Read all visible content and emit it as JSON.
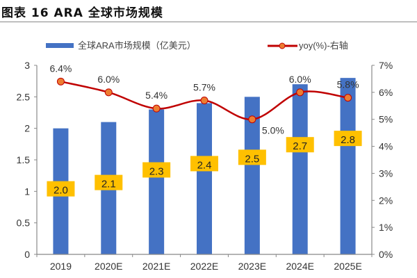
{
  "header": {
    "title": "图表 16 ARA 全球市场规模"
  },
  "chart_data": {
    "type": "bar+line",
    "title": "图表 16 ARA 全球市场规模",
    "categories": [
      "2019",
      "2020E",
      "2021E",
      "2022E",
      "2023E",
      "2024E",
      "2025E"
    ],
    "series": [
      {
        "name": "全球ARA市场规模（亿美元）",
        "type": "bar",
        "axis": "left",
        "values": [
          2.0,
          2.1,
          2.3,
          2.4,
          2.5,
          2.7,
          2.8
        ],
        "labels": [
          "2.0",
          "2.1",
          "2.3",
          "2.4",
          "2.5",
          "2.7",
          "2.8"
        ],
        "color": "#4472C4",
        "label_bg": "#FFC000"
      },
      {
        "name": "yoy(%)-右轴",
        "type": "line",
        "axis": "right",
        "values": [
          6.4,
          6.0,
          5.4,
          5.7,
          5.0,
          6.0,
          5.8
        ],
        "labels": [
          "6.4%",
          "6.0%",
          "5.4%",
          "5.7%",
          "5.0%",
          "6.0%",
          "5.8%"
        ],
        "color": "#C00000",
        "marker_color": "#ED7D31"
      }
    ],
    "left_axis": {
      "ylim": [
        0,
        3
      ],
      "ticks": [
        "0",
        "0.5",
        "1",
        "1.5",
        "2",
        "2.5",
        "3"
      ]
    },
    "right_axis": {
      "ylim": [
        0,
        7
      ],
      "ticks": [
        "0%",
        "1%",
        "2%",
        "3%",
        "4%",
        "5%",
        "6%",
        "7%"
      ]
    },
    "legend_placement": "top",
    "grid": false
  }
}
